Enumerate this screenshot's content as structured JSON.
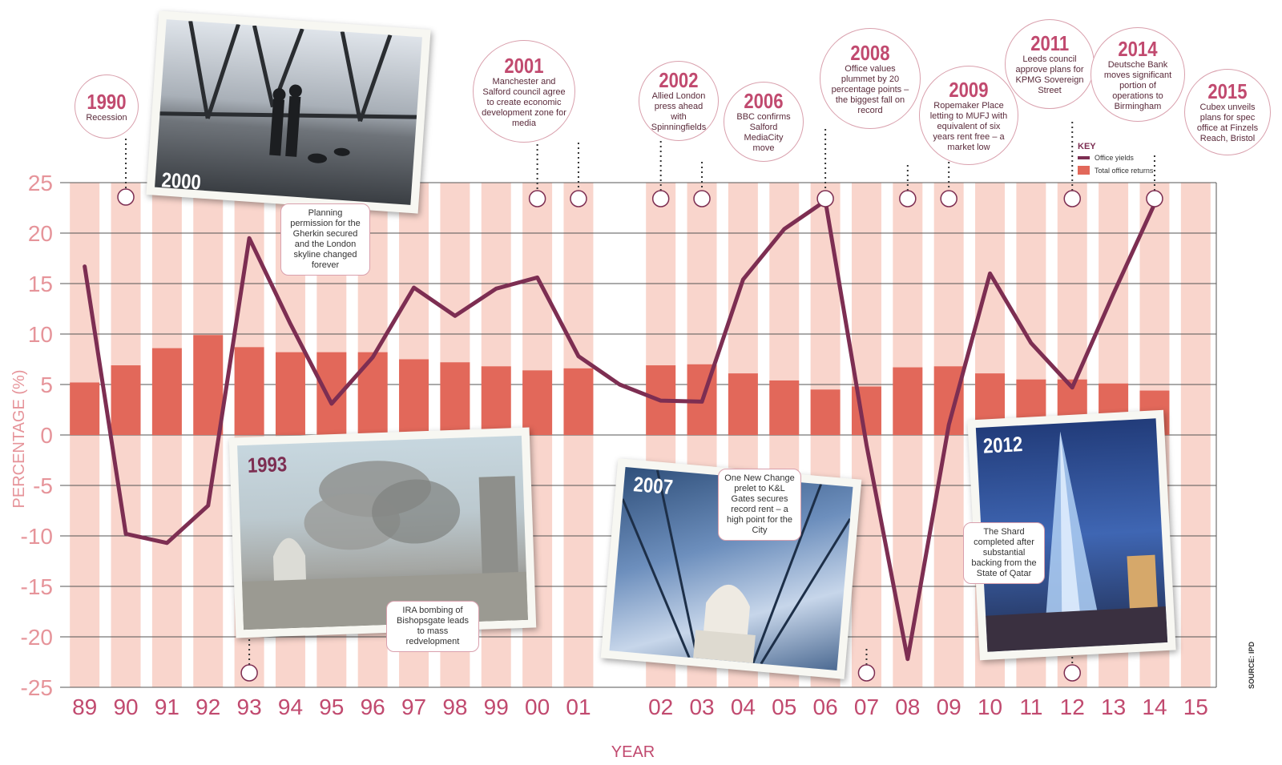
{
  "chart_data": {
    "type": "bar+line",
    "categories": [
      "89",
      "90",
      "91",
      "92",
      "93",
      "94",
      "95",
      "96",
      "97",
      "98",
      "99",
      "00",
      "01",
      "",
      "02",
      "03",
      "04",
      "05",
      "06",
      "07",
      "08",
      "09",
      "10",
      "11",
      "12",
      "13",
      "14",
      "15"
    ],
    "series": [
      {
        "name": "Office yields",
        "type": "line",
        "values": [
          16.7,
          -9.8,
          -10.7,
          -7,
          19.5,
          11,
          3.1,
          7.7,
          14.6,
          11.8,
          14.5,
          15.6,
          7.8,
          5,
          3.4,
          3.3,
          15.4,
          20.4,
          23.2,
          -1,
          -22.2,
          1,
          16,
          9.1,
          4.7,
          14,
          22.9,
          null
        ]
      },
      {
        "name": "Total office returns",
        "type": "bar",
        "values": [
          5.2,
          6.9,
          8.6,
          9.9,
          8.7,
          8.2,
          8.2,
          8.2,
          7.5,
          7.2,
          6.8,
          6.4,
          6.6,
          null,
          6.9,
          7.0,
          6.1,
          5.4,
          4.5,
          4.8,
          6.7,
          6.8,
          6.1,
          5.5,
          5.5,
          5.1,
          4.4,
          null
        ]
      }
    ],
    "ylim": [
      -25,
      25
    ],
    "yticks": [
      25,
      20,
      15,
      10,
      5,
      0,
      -5,
      -10,
      -15,
      -20,
      -25
    ],
    "ylabel": "PERCENTAGE (%)",
    "xlabel": "YEAR",
    "legend": {
      "title": "KEY",
      "position": "top-right",
      "items": [
        "Office yields",
        "Total office returns"
      ]
    },
    "source": "SOURCE: IPD"
  },
  "colors": {
    "line": "#7d2e52",
    "bar": "#e2685a",
    "bg_bar": "#f9d5cc",
    "accent": "#c14a6f",
    "tick": "#e6949a"
  },
  "callouts": [
    {
      "year": "1990",
      "text": "Recession"
    },
    {
      "year": "2001",
      "text": "Manchester and Salford council agree to create economic development zone for media"
    },
    {
      "year": "2002",
      "text": "Allied London press ahead with Spinningfields"
    },
    {
      "year": "2006",
      "text": "BBC confirms Salford MediaCity move"
    },
    {
      "year": "2008",
      "text": "Office values plummet by 20 percentage points – the biggest fall on record"
    },
    {
      "year": "2009",
      "text": "Ropemaker Place letting to MUFJ with equivalent of six years rent free – a market low"
    },
    {
      "year": "2011",
      "text": "Leeds council approve plans for KPMG Sovereign Street"
    },
    {
      "year": "2014",
      "text": "Deutsche Bank moves significant portion of operations to Birmingham"
    },
    {
      "year": "2015",
      "text": "Cubex unveils plans for spec office at Finzels Reach, Bristol"
    }
  ],
  "photos": [
    {
      "year": "2000",
      "caption": "Planning permission for the Gherkin secured and the London skyline changed forever"
    },
    {
      "year": "1993",
      "caption": "IRA bombing of Bishopsgate leads to mass redvelopment"
    },
    {
      "year": "2007",
      "caption": "One New Change prelet to K&L Gates secures record rent – a high point for the City"
    },
    {
      "year": "2012",
      "caption": "The Shard completed after substantial backing from the State of Qatar"
    }
  ]
}
